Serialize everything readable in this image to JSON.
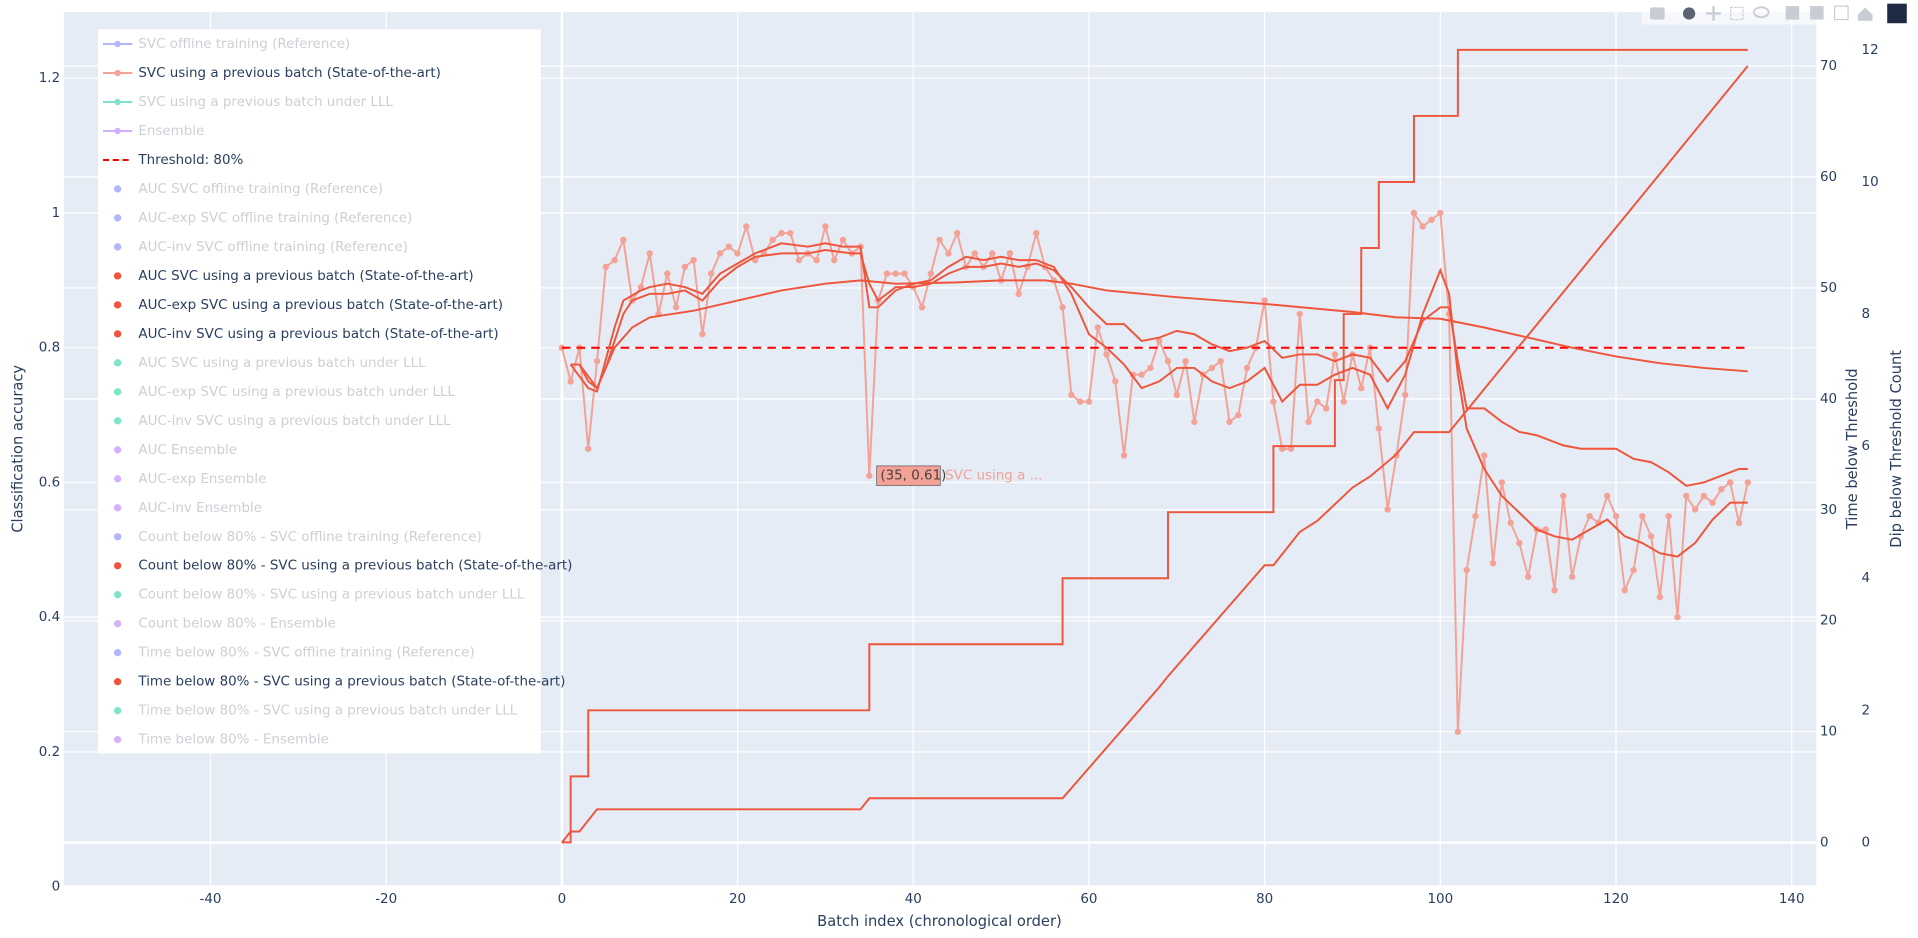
{
  "chart_data": {
    "type": "line",
    "x_label": "Batch index (chronological order)",
    "y_label": "Classification accuracy",
    "y2_label": "Time below Threshold",
    "y3_label": "Dip below Threshold Count",
    "xlim": [
      -56.7,
      142.8
    ],
    "xticks": [
      -40,
      -20,
      0,
      20,
      40,
      60,
      80,
      100,
      120,
      140
    ],
    "ylim": [
      0,
      1.298
    ],
    "yticks": [
      0,
      0.2,
      0.4,
      0.6,
      0.8,
      1,
      1.2
    ],
    "y2lim": [
      -3.97,
      74.85
    ],
    "y2ticks": [
      0,
      10,
      20,
      30,
      40,
      50,
      60,
      70
    ],
    "y3lim": [
      -0.67,
      12.57
    ],
    "y3ticks": [
      0,
      2,
      4,
      6,
      8,
      10,
      12
    ],
    "grid": true,
    "legend_position": "top-left",
    "x": [
      0,
      1,
      2,
      3,
      4,
      5,
      6,
      7,
      8,
      9,
      10,
      11,
      12,
      13,
      14,
      15,
      16,
      17,
      18,
      19,
      20,
      21,
      22,
      23,
      24,
      25,
      26,
      27,
      28,
      29,
      30,
      31,
      32,
      33,
      34,
      35,
      36,
      37,
      38,
      39,
      40,
      41,
      42,
      43,
      44,
      45,
      46,
      47,
      48,
      49,
      50,
      51,
      52,
      53,
      54,
      55,
      56,
      57,
      58,
      59,
      60,
      61,
      62,
      63,
      64,
      65,
      66,
      67,
      68,
      69,
      70,
      71,
      72,
      73,
      74,
      75,
      76,
      77,
      78,
      79,
      80,
      81,
      82,
      83,
      84,
      85,
      86,
      87,
      88,
      89,
      90,
      91,
      92,
      93,
      94,
      95,
      96,
      97,
      98,
      99,
      100,
      101,
      102,
      103,
      104,
      105,
      106,
      107,
      108,
      109,
      110,
      111,
      112,
      113,
      114,
      115,
      116,
      117,
      118,
      119,
      120,
      121,
      122,
      123,
      124,
      125,
      126,
      127,
      128,
      129,
      130,
      131,
      132,
      133,
      134,
      135
    ],
    "series": [
      {
        "name": "SVC offline training (Reference)",
        "color": "#636efa",
        "visible": false,
        "legend_symbol": "line-marker"
      },
      {
        "name": "SVC using a previous batch (State-of-the-art)",
        "color": "#f4a196",
        "visible": true,
        "legend_symbol": "line-marker",
        "markers": true,
        "values": [
          0.8,
          0.75,
          0.8,
          0.65,
          0.78,
          0.92,
          0.93,
          0.96,
          0.87,
          0.89,
          0.94,
          0.85,
          0.91,
          0.86,
          0.92,
          0.93,
          0.82,
          0.91,
          0.94,
          0.95,
          0.94,
          0.98,
          0.93,
          0.94,
          0.96,
          0.97,
          0.97,
          0.93,
          0.94,
          0.93,
          0.98,
          0.93,
          0.96,
          0.94,
          0.95,
          0.61,
          0.87,
          0.91,
          0.91,
          0.91,
          0.89,
          0.86,
          0.91,
          0.96,
          0.94,
          0.97,
          0.92,
          0.94,
          0.92,
          0.94,
          0.9,
          0.94,
          0.88,
          0.92,
          0.97,
          0.92,
          0.9,
          0.86,
          0.73,
          0.72,
          0.72,
          0.83,
          0.79,
          0.75,
          0.64,
          0.76,
          0.76,
          0.77,
          0.81,
          0.78,
          0.73,
          0.78,
          0.69,
          0.76,
          0.77,
          0.78,
          0.69,
          0.7,
          0.77,
          0.8,
          0.87,
          0.72,
          0.65,
          0.65,
          0.85,
          0.69,
          0.72,
          0.71,
          0.79,
          0.72,
          0.79,
          0.74,
          0.8,
          0.68,
          0.56,
          0.64,
          0.73,
          1.0,
          0.98,
          0.99,
          1.0,
          0.85,
          0.23,
          0.47,
          0.55,
          0.64,
          0.48,
          0.6,
          0.54,
          0.51,
          0.46,
          0.53,
          0.53,
          0.44,
          0.58,
          0.46,
          0.52,
          0.55,
          0.54,
          0.58,
          0.55,
          0.44,
          0.47,
          0.55,
          0.52,
          0.43,
          0.55,
          0.4,
          0.58,
          0.56,
          0.58,
          0.57,
          0.59,
          0.6,
          0.54,
          0.6
        ]
      },
      {
        "name": "SVC using a previous batch under LLL",
        "color": "#00cc96",
        "visible": false,
        "legend_symbol": "line-marker"
      },
      {
        "name": "Ensemble",
        "color": "#ab63fa",
        "visible": false,
        "legend_symbol": "line-marker"
      },
      {
        "name": "Threshold: 80%",
        "color": "#ff0000",
        "visible": true,
        "legend_symbol": "dash",
        "dash": true,
        "x": [
          0,
          135
        ],
        "values": [
          0.8,
          0.8
        ]
      },
      {
        "name": "AUC SVC offline training (Reference)",
        "color": "#636efa",
        "visible": false,
        "legend_symbol": "dot"
      },
      {
        "name": "AUC-exp SVC offline training (Reference)",
        "color": "#636efa",
        "visible": false,
        "legend_symbol": "dot"
      },
      {
        "name": "AUC-inv SVC offline training (Reference)",
        "color": "#636efa",
        "visible": false,
        "legend_symbol": "dot"
      },
      {
        "name": "AUC SVC using a previous batch (State-of-the-art)",
        "color": "#ef553b",
        "visible": true,
        "legend_symbol": "dot",
        "x": [
          1,
          3,
          4,
          6,
          7,
          9,
          10,
          12,
          14,
          16,
          18,
          20,
          22,
          25,
          28,
          30,
          32,
          34,
          35,
          36,
          38,
          40,
          42,
          44,
          46,
          48,
          50,
          52,
          54,
          56,
          58,
          60,
          62,
          64,
          66,
          68,
          70,
          72,
          74,
          76,
          78,
          80,
          82,
          84,
          86,
          88,
          90,
          92,
          94,
          96,
          98,
          100,
          101,
          102,
          103,
          105,
          107,
          109,
          111,
          113,
          115,
          117,
          119,
          121,
          123,
          125,
          127,
          129,
          131,
          133,
          135
        ],
        "values": [
          0.775,
          0.74,
          0.735,
          0.83,
          0.87,
          0.885,
          0.89,
          0.895,
          0.89,
          0.88,
          0.91,
          0.925,
          0.94,
          0.955,
          0.95,
          0.955,
          0.95,
          0.95,
          0.86,
          0.86,
          0.885,
          0.895,
          0.9,
          0.92,
          0.935,
          0.93,
          0.935,
          0.93,
          0.93,
          0.92,
          0.88,
          0.82,
          0.8,
          0.775,
          0.74,
          0.75,
          0.77,
          0.77,
          0.75,
          0.74,
          0.75,
          0.77,
          0.72,
          0.745,
          0.745,
          0.76,
          0.77,
          0.76,
          0.71,
          0.76,
          0.85,
          0.915,
          0.88,
          0.76,
          0.68,
          0.62,
          0.58,
          0.555,
          0.53,
          0.52,
          0.515,
          0.53,
          0.545,
          0.52,
          0.51,
          0.495,
          0.49,
          0.51,
          0.545,
          0.57,
          0.57
        ]
      },
      {
        "name": "AUC-exp SVC using a previous batch (State-of-the-art)",
        "color": "#ef553b",
        "visible": true,
        "legend_symbol": "dot",
        "x": [
          1,
          2,
          3,
          4,
          5,
          7,
          8,
          10,
          12,
          14,
          16,
          18,
          20,
          22,
          25,
          28,
          30,
          33,
          34,
          35,
          36,
          38,
          40,
          42,
          44,
          46,
          48,
          50,
          52,
          54,
          56,
          58,
          60,
          62,
          64,
          66,
          68,
          70,
          72,
          74,
          76,
          78,
          80,
          82,
          84,
          86,
          88,
          90,
          92,
          94,
          96,
          98,
          100,
          101,
          102,
          103,
          105,
          107,
          109,
          111,
          114,
          116,
          118,
          120,
          122,
          124,
          126,
          128,
          130,
          132,
          134,
          135
        ],
        "values": [
          0.775,
          0.775,
          0.75,
          0.74,
          0.77,
          0.85,
          0.87,
          0.88,
          0.88,
          0.885,
          0.87,
          0.9,
          0.92,
          0.935,
          0.94,
          0.94,
          0.945,
          0.94,
          0.94,
          0.895,
          0.87,
          0.89,
          0.89,
          0.895,
          0.91,
          0.92,
          0.92,
          0.925,
          0.92,
          0.925,
          0.915,
          0.89,
          0.86,
          0.835,
          0.835,
          0.81,
          0.815,
          0.825,
          0.82,
          0.805,
          0.795,
          0.8,
          0.81,
          0.785,
          0.79,
          0.79,
          0.78,
          0.79,
          0.785,
          0.75,
          0.78,
          0.84,
          0.86,
          0.86,
          0.78,
          0.71,
          0.71,
          0.69,
          0.675,
          0.67,
          0.655,
          0.65,
          0.65,
          0.65,
          0.635,
          0.63,
          0.615,
          0.595,
          0.6,
          0.61,
          0.62,
          0.62
        ]
      },
      {
        "name": "AUC-inv SVC using a previous batch (State-of-the-art)",
        "color": "#ef553b",
        "visible": true,
        "legend_symbol": "dot",
        "x": [
          1,
          2,
          4,
          6,
          8,
          10,
          15,
          20,
          25,
          30,
          34,
          38,
          45,
          50,
          55,
          58,
          62,
          70,
          80,
          90,
          95,
          100,
          105,
          110,
          115,
          120,
          125,
          130,
          135
        ],
        "values": [
          0.775,
          0.775,
          0.74,
          0.8,
          0.83,
          0.845,
          0.855,
          0.87,
          0.885,
          0.895,
          0.9,
          0.895,
          0.897,
          0.9,
          0.9,
          0.895,
          0.885,
          0.875,
          0.865,
          0.853,
          0.845,
          0.843,
          0.83,
          0.815,
          0.8,
          0.787,
          0.777,
          0.77,
          0.765
        ]
      },
      {
        "name": "AUC SVC using a previous batch under LLL",
        "color": "#00cc96",
        "visible": false,
        "legend_symbol": "dot"
      },
      {
        "name": "AUC-exp SVC using a previous batch under LLL",
        "color": "#00cc96",
        "visible": false,
        "legend_symbol": "dot"
      },
      {
        "name": "AUC-inv SVC using a previous batch under LLL",
        "color": "#00cc96",
        "visible": false,
        "legend_symbol": "dot"
      },
      {
        "name": "AUC Ensemble",
        "color": "#ab63fa",
        "visible": false,
        "legend_symbol": "dot"
      },
      {
        "name": "AUC-exp Ensemble",
        "color": "#ab63fa",
        "visible": false,
        "legend_symbol": "dot"
      },
      {
        "name": "AUC-inv Ensemble",
        "color": "#ab63fa",
        "visible": false,
        "legend_symbol": "dot"
      },
      {
        "name": "Count below 80% - SVC offline training (Reference)",
        "color": "#636efa",
        "visible": false,
        "legend_symbol": "dot"
      },
      {
        "name": "Count below 80% - SVC using a previous batch (State-of-the-art)",
        "color": "#ef553b",
        "visible": true,
        "legend_symbol": "dot",
        "axis": "y3",
        "shape": "hv",
        "x": [
          0,
          1,
          3,
          35,
          57,
          69,
          81,
          88,
          89,
          91,
          93,
          97,
          102,
          135
        ],
        "values": [
          0,
          1,
          2,
          3,
          4,
          5,
          6,
          7,
          8,
          9,
          10,
          11,
          12,
          12
        ]
      },
      {
        "name": "Count below 80% - SVC using a previous batch under LLL",
        "color": "#00cc96",
        "visible": false,
        "legend_symbol": "dot"
      },
      {
        "name": "Count below 80% - Ensemble",
        "color": "#ab63fa",
        "visible": false,
        "legend_symbol": "dot"
      },
      {
        "name": "Time below 80% - SVC offline training (Reference)",
        "color": "#636efa",
        "visible": false,
        "legend_symbol": "dot"
      },
      {
        "name": "Time below 80% - SVC using a previous batch (State-of-the-art)",
        "color": "#ef553b",
        "visible": true,
        "legend_symbol": "dot",
        "axis": "y2",
        "x": [
          0,
          1,
          2,
          4,
          34,
          35,
          57,
          68,
          69,
          80,
          81,
          84,
          86,
          90,
          92,
          95,
          97,
          101,
          135
        ],
        "values": [
          0,
          1,
          1,
          3,
          3,
          4,
          4,
          14,
          15,
          25,
          25,
          28,
          29,
          32,
          33,
          35,
          37,
          37,
          70
        ]
      },
      {
        "name": "Time below 80% - SVC using a previous batch under LLL",
        "color": "#00cc96",
        "visible": false,
        "legend_symbol": "dot"
      },
      {
        "name": "Time below 80% - Ensemble",
        "color": "#ab63fa",
        "visible": false,
        "legend_symbol": "dot"
      }
    ],
    "hover": {
      "x": 35,
      "y": 0.61,
      "label": "(35, 0.61)",
      "name": "SVC using a ..."
    }
  }
}
